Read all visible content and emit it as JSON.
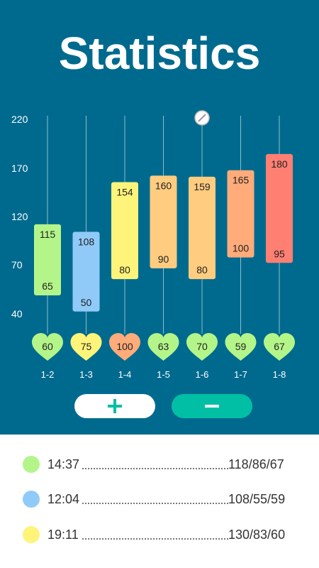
{
  "header": {
    "title": "Statistics"
  },
  "chart_data": {
    "type": "bar",
    "title": "",
    "ylim": [
      40,
      220
    ],
    "yticks": [
      "220",
      "170",
      "120",
      "70",
      "40"
    ],
    "categories": [
      "1-2",
      "1-3",
      "1-4",
      "1-5",
      "1-6",
      "1-7",
      "1-8"
    ],
    "series": [
      {
        "high": [
          115,
          108,
          154,
          160,
          159,
          165,
          180
        ]
      },
      {
        "low": [
          65,
          50,
          80,
          90,
          80,
          100,
          95
        ]
      },
      {
        "pulse": [
          60,
          75,
          100,
          63,
          70,
          59,
          67
        ]
      }
    ],
    "high": [
      "115",
      "108",
      "154",
      "160",
      "159",
      "165",
      "180"
    ],
    "low": [
      "65",
      "50",
      "80",
      "90",
      "80",
      "100",
      "95"
    ],
    "pulse": [
      "60",
      "75",
      "100",
      "63",
      "70",
      "59",
      "67"
    ],
    "bar_colors": [
      "#b4f58a",
      "#90caf9",
      "#fff47a",
      "#ffcc80",
      "#ffcc80",
      "#ffab7a",
      "#ff7f73"
    ],
    "heart_colors": [
      "#b4f58a",
      "#fff47a",
      "#ffab7a",
      "#b4f58a",
      "#b4f58a",
      "#b4f58a",
      "#b4f58a"
    ],
    "scroll_handle_icon": "slash-circle-icon"
  },
  "controls": {
    "plus_icon": "plus-icon",
    "minus_icon": "minus-icon",
    "plus_color": "#00bfa5",
    "minus_color": "#ffffff"
  },
  "records": [
    {
      "time": "14:37",
      "value": "118/86/67",
      "color": "#b4f58a"
    },
    {
      "time": "12:04",
      "value": "108/55/59",
      "color": "#90caf9"
    },
    {
      "time": "19:11",
      "value": "130/83/60",
      "color": "#fff47a"
    }
  ]
}
